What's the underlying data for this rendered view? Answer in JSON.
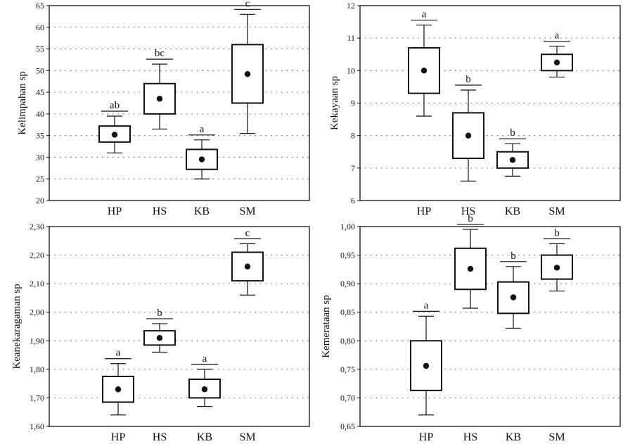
{
  "style": {
    "ink": "#111111",
    "gridline": "#555555",
    "background": "#ffffff"
  },
  "chart_data": [
    {
      "type": "box",
      "ylabel": "Kelimpahan sp",
      "categories": [
        "HP",
        "HS",
        "KB",
        "SM"
      ],
      "ylim": [
        20,
        65
      ],
      "yticks": [
        "20",
        "25",
        "30",
        "35",
        "40",
        "45",
        "50",
        "55",
        "60",
        "65"
      ],
      "grid": "dotted-horizontal",
      "boxes": [
        {
          "category": "HP",
          "whisker_low": 31,
          "q1": 33.5,
          "mean": 35.2,
          "q3": 37.2,
          "whisker_high": 39.5,
          "letter": "ab"
        },
        {
          "category": "HS",
          "whisker_low": 36.5,
          "q1": 40,
          "mean": 43.5,
          "q3": 47,
          "whisker_high": 51.5,
          "letter": "bc"
        },
        {
          "category": "KB",
          "whisker_low": 25,
          "q1": 27.2,
          "mean": 29.5,
          "q3": 31.8,
          "whisker_high": 34,
          "letter": "a"
        },
        {
          "category": "SM",
          "whisker_low": 35.5,
          "q1": 42.5,
          "mean": 49.2,
          "q3": 56,
          "whisker_high": 63,
          "letter": "c"
        }
      ]
    },
    {
      "type": "box",
      "ylabel": "Kekayaan sp",
      "categories": [
        "HP",
        "HS",
        "KB",
        "SM"
      ],
      "ylim": [
        6,
        12
      ],
      "yticks": [
        "6",
        "7",
        "8",
        "9",
        "10",
        "11",
        "12"
      ],
      "grid": "dotted-horizontal",
      "boxes": [
        {
          "category": "HP",
          "whisker_low": 8.6,
          "q1": 9.3,
          "mean": 10,
          "q3": 10.7,
          "whisker_high": 11.4,
          "letter": "a"
        },
        {
          "category": "HS",
          "whisker_low": 6.6,
          "q1": 7.3,
          "mean": 8,
          "q3": 8.7,
          "whisker_high": 9.4,
          "letter": "b"
        },
        {
          "category": "KB",
          "whisker_low": 6.75,
          "q1": 7,
          "mean": 7.25,
          "q3": 7.5,
          "whisker_high": 7.75,
          "letter": "b"
        },
        {
          "category": "SM",
          "whisker_low": 9.8,
          "q1": 10,
          "mean": 10.25,
          "q3": 10.5,
          "whisker_high": 10.75,
          "letter": "a"
        }
      ]
    },
    {
      "type": "box",
      "ylabel": "Keanekaragaman sp",
      "categories": [
        "HP",
        "HS",
        "KB",
        "SM"
      ],
      "ylim": [
        1.6,
        2.3
      ],
      "yticks": [
        "1,60",
        "1,70",
        "1,80",
        "1,90",
        "2,00",
        "2,10",
        "2,20",
        "2,30"
      ],
      "grid": "dotted-horizontal",
      "boxes": [
        {
          "category": "HP",
          "whisker_low": 1.64,
          "q1": 1.685,
          "mean": 1.73,
          "q3": 1.775,
          "whisker_high": 1.82,
          "letter": "a"
        },
        {
          "category": "HS",
          "whisker_low": 1.86,
          "q1": 1.885,
          "mean": 1.91,
          "q3": 1.935,
          "whisker_high": 1.96,
          "letter": "b"
        },
        {
          "category": "KB",
          "whisker_low": 1.67,
          "q1": 1.7,
          "mean": 1.73,
          "q3": 1.765,
          "whisker_high": 1.8,
          "letter": "a"
        },
        {
          "category": "SM",
          "whisker_low": 2.06,
          "q1": 2.11,
          "mean": 2.16,
          "q3": 2.21,
          "whisker_high": 2.24,
          "letter": "c"
        }
      ]
    },
    {
      "type": "box",
      "ylabel": "Kemerataan sp",
      "categories": [
        "HP",
        "HS",
        "KB",
        "SM"
      ],
      "ylim": [
        0.65,
        1.0
      ],
      "yticks": [
        "0,65",
        "0,70",
        "0,75",
        "0,80",
        "0,85",
        "0,90",
        "0,95",
        "1,00"
      ],
      "grid": "dotted-horizontal",
      "boxes": [
        {
          "category": "HP",
          "whisker_low": 0.67,
          "q1": 0.713,
          "mean": 0.756,
          "q3": 0.8,
          "whisker_high": 0.843,
          "letter": "a"
        },
        {
          "category": "HS",
          "whisker_low": 0.857,
          "q1": 0.89,
          "mean": 0.926,
          "q3": 0.962,
          "whisker_high": 0.995,
          "letter": "b"
        },
        {
          "category": "KB",
          "whisker_low": 0.822,
          "q1": 0.848,
          "mean": 0.876,
          "q3": 0.903,
          "whisker_high": 0.93,
          "letter": "b"
        },
        {
          "category": "SM",
          "whisker_low": 0.887,
          "q1": 0.908,
          "mean": 0.928,
          "q3": 0.95,
          "whisker_high": 0.97,
          "letter": "b"
        }
      ]
    }
  ]
}
